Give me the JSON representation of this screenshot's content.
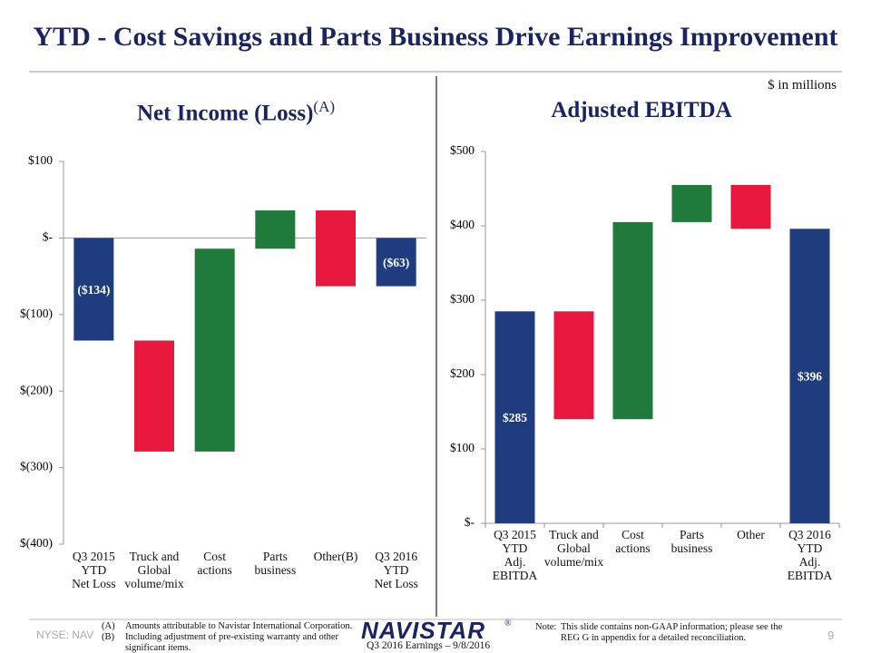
{
  "title": "YTD - Cost Savings and Parts Business Drive Earnings Improvement",
  "units_note": "$ in millions",
  "chart_data": [
    {
      "type": "waterfall",
      "title": "Net Income (Loss)",
      "title_superscript": "(A)",
      "categories": [
        "Q3 2015\nYTD\nNet Loss",
        "Truck and\nGlobal\nvolume/mix",
        "Cost\nactions",
        "Parts\nbusiness",
        "Other(B)",
        "Q3 2016\nYTD\nNet Loss"
      ],
      "values": [
        -134,
        -145,
        265,
        50,
        -99,
        -63
      ],
      "value_labels": [
        "($134)",
        null,
        null,
        null,
        null,
        "($63)"
      ],
      "measure": [
        "absolute",
        "relative",
        "relative",
        "relative",
        "relative",
        "absolute"
      ],
      "colors": [
        "#1f3c7e",
        "#e8173d",
        "#1f7a3c",
        "#1f7a3c",
        "#e8173d",
        "#1f3c7e"
      ],
      "ylim": [
        -400,
        100
      ],
      "yticks": [
        {
          "value": -400,
          "label": "$(400)"
        },
        {
          "value": -300,
          "label": "$(300)"
        },
        {
          "value": -200,
          "label": "$(200)"
        },
        {
          "value": -100,
          "label": "$(100)"
        },
        {
          "value": 0,
          "label": "$-"
        },
        {
          "value": 100,
          "label": "$100"
        }
      ],
      "grid": false
    },
    {
      "type": "waterfall",
      "title": "Adjusted EBITDA",
      "categories": [
        "Q3 2015\nYTD\nAdj.\nEBITDA",
        "Truck and\nGlobal\nvolume/mix",
        "Cost\nactions",
        "Parts\nbusiness",
        "Other",
        "Q3 2016\nYTD\nAdj.\nEBITDA"
      ],
      "values": [
        285,
        -145,
        265,
        50,
        -59,
        396
      ],
      "value_labels": [
        "$285",
        null,
        null,
        null,
        null,
        "$396"
      ],
      "measure": [
        "absolute",
        "relative",
        "relative",
        "relative",
        "relative",
        "absolute"
      ],
      "colors": [
        "#1f3c7e",
        "#e8173d",
        "#1f7a3c",
        "#1f7a3c",
        "#e8173d",
        "#1f3c7e"
      ],
      "ylim": [
        0,
        500
      ],
      "yticks": [
        {
          "value": 0,
          "label": "$-"
        },
        {
          "value": 100,
          "label": "$100"
        },
        {
          "value": 200,
          "label": "$200"
        },
        {
          "value": 300,
          "label": "$300"
        },
        {
          "value": 400,
          "label": "$400"
        },
        {
          "value": 500,
          "label": "$500"
        }
      ],
      "grid": false
    }
  ],
  "footer": {
    "exchange": "NYSE: NAV",
    "footnotes": [
      {
        "marker": "(A)",
        "text": "Amounts attributable to Navistar International Corporation."
      },
      {
        "marker": "(B)",
        "text": "Including adjustment of pre-existing warranty and other significant items."
      }
    ],
    "logo": "NAVISTAR",
    "logo_mark": "®",
    "event": "Q3 2016 Earnings – 9/8/2016",
    "note_label": "Note:",
    "note": "This slide contains non-GAAP information; please see the REG G in appendix for a detailed reconciliation.",
    "page": "9"
  }
}
